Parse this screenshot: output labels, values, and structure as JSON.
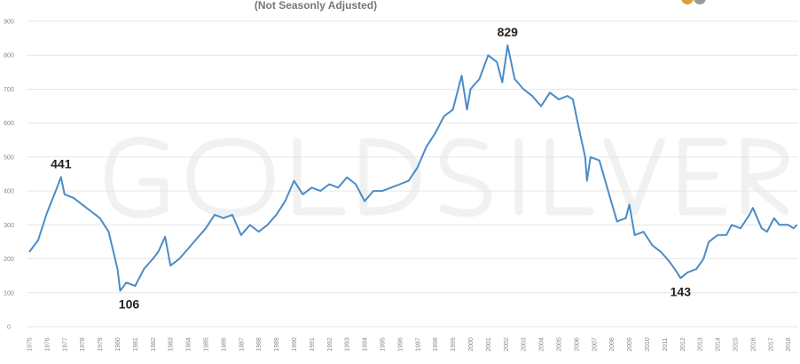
{
  "chart_data": {
    "type": "line",
    "subtitle": "(Not Seasonly Adjusted)",
    "watermark": "GOLD SILVER",
    "xlabel": "",
    "ylabel": "",
    "ylim": [
      0,
      900
    ],
    "xlim": [
      1975,
      2018.6
    ],
    "yticks": [
      "0",
      "100",
      "200",
      "300",
      "400",
      "500",
      "600",
      "700",
      "800",
      "900"
    ],
    "xticks": [
      "1975",
      "1976",
      "1977",
      "1978",
      "1979",
      "1980",
      "1981",
      "1982",
      "1983",
      "1984",
      "1985",
      "1986",
      "1987",
      "1988",
      "1989",
      "1990",
      "1991",
      "1992",
      "1993",
      "1994",
      "1995",
      "1996",
      "1997",
      "1998",
      "1999",
      "2000",
      "2001",
      "2002",
      "2003",
      "2004",
      "2005",
      "2006",
      "2007",
      "2008",
      "2009",
      "2010",
      "2011",
      "2012",
      "2013",
      "2014",
      "2015",
      "2016",
      "2017",
      "2018"
    ],
    "grid": true,
    "line_color": "#4a8cc7",
    "series": [
      {
        "name": "value",
        "x": [
          1975.0,
          1975.5,
          1976.0,
          1976.5,
          1976.8,
          1977.0,
          1977.5,
          1978.0,
          1978.5,
          1979.0,
          1979.5,
          1980.0,
          1980.15,
          1980.5,
          1981.0,
          1981.5,
          1982.0,
          1982.3,
          1982.7,
          1983.0,
          1983.5,
          1984.0,
          1984.5,
          1985.0,
          1985.5,
          1986.0,
          1986.5,
          1987.0,
          1987.5,
          1988.0,
          1988.5,
          1989.0,
          1989.5,
          1990.0,
          1990.5,
          1991.0,
          1991.5,
          1992.0,
          1992.5,
          1993.0,
          1993.5,
          1994.0,
          1994.5,
          1995.0,
          1995.5,
          1996.0,
          1996.5,
          1997.0,
          1997.5,
          1998.0,
          1998.5,
          1999.0,
          1999.5,
          1999.8,
          2000.0,
          2000.5,
          2001.0,
          2001.5,
          2001.8,
          2002.1,
          2002.5,
          2003.0,
          2003.5,
          2004.0,
          2004.5,
          2005.0,
          2005.5,
          2005.8,
          2006.2,
          2006.5,
          2006.6,
          2006.8,
          2007.3,
          2007.8,
          2008.3,
          2008.8,
          2009.0,
          2009.3,
          2009.8,
          2010.3,
          2010.8,
          2011.3,
          2011.7,
          2011.9,
          2012.3,
          2012.8,
          2013.2,
          2013.5,
          2014.0,
          2014.5,
          2014.8,
          2015.3,
          2015.8,
          2016.0,
          2016.5,
          2016.8,
          2017.2,
          2017.5,
          2018.0,
          2018.3,
          2018.5
        ],
        "y": [
          220,
          255,
          335,
          400,
          441,
          390,
          380,
          360,
          340,
          320,
          280,
          170,
          106,
          130,
          120,
          170,
          200,
          220,
          265,
          180,
          200,
          230,
          260,
          290,
          330,
          320,
          330,
          270,
          300,
          280,
          300,
          330,
          370,
          430,
          390,
          410,
          400,
          420,
          410,
          440,
          420,
          370,
          400,
          400,
          410,
          420,
          430,
          470,
          530,
          570,
          620,
          640,
          740,
          640,
          700,
          730,
          800,
          780,
          720,
          829,
          730,
          700,
          680,
          650,
          690,
          670,
          680,
          670,
          570,
          500,
          430,
          500,
          490,
          400,
          310,
          320,
          360,
          270,
          280,
          240,
          220,
          190,
          160,
          143,
          160,
          170,
          200,
          250,
          270,
          270,
          300,
          290,
          330,
          350,
          290,
          280,
          320,
          300,
          300,
          290,
          300
        ]
      }
    ],
    "annotations": [
      {
        "text": "441",
        "x": 1976.8,
        "y": 441
      },
      {
        "text": "106",
        "x": 1980.15,
        "y": 106
      },
      {
        "text": "829",
        "x": 2002.1,
        "y": 829
      },
      {
        "text": "143",
        "x": 2011.9,
        "y": 143
      }
    ]
  }
}
